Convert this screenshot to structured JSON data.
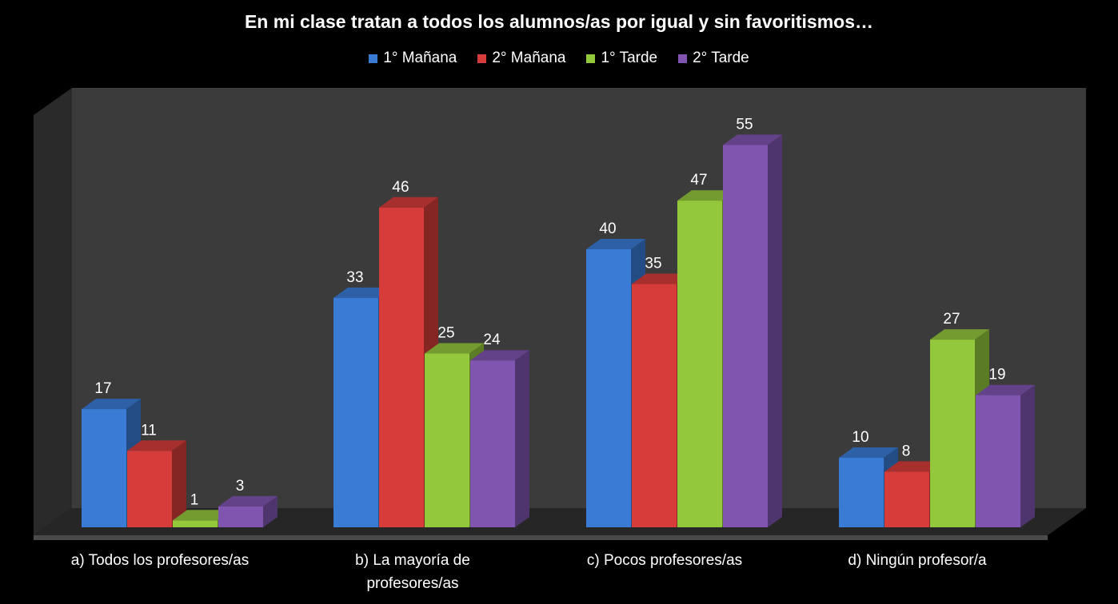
{
  "chart_data": {
    "type": "bar",
    "title": "En mi clase tratan a todos los alumnos/as por igual y sin favoritismos…",
    "categories": [
      "a) Todos los profesores/as",
      "b) La mayoría de\nprofesores/as",
      "c) Pocos profesores/as",
      "d) Ningún profesor/a"
    ],
    "series": [
      {
        "name": "1° Mañana",
        "color": "#3a7bd5",
        "values": [
          17,
          33,
          40,
          10
        ]
      },
      {
        "name": "2° Mañana",
        "color": "#d63c3a",
        "values": [
          11,
          46,
          35,
          8
        ]
      },
      {
        "name": "1° Tarde",
        "color": "#93c73c",
        "values": [
          1,
          25,
          47,
          27
        ]
      },
      {
        "name": "2° Tarde",
        "color": "#7f55b0",
        "values": [
          3,
          24,
          55,
          19
        ]
      }
    ],
    "ylim": [
      0,
      60
    ],
    "legend": "top",
    "grid": false
  }
}
